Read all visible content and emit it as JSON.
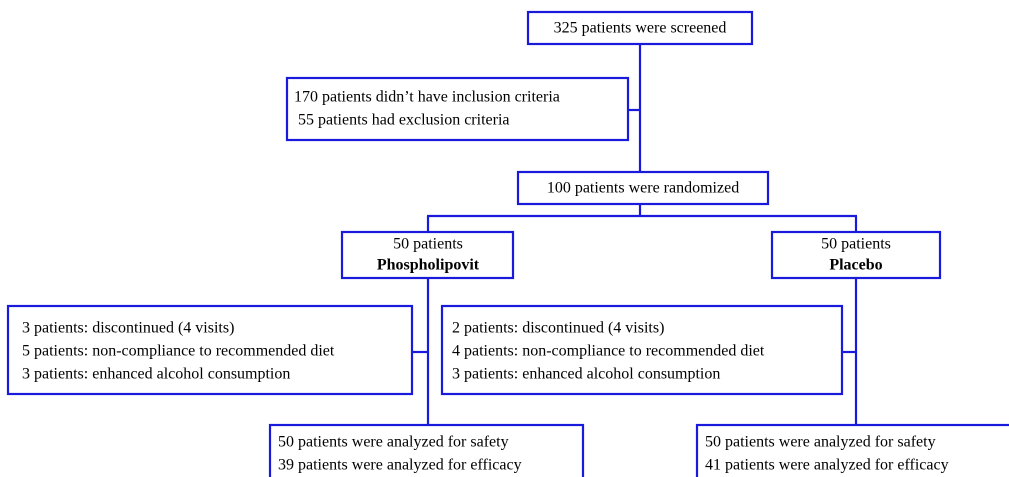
{
  "nodes": [
    {
      "lines": [
        "325 patients were screened"
      ]
    },
    {
      "lines": [
        "170 patients didn’t have inclusion criteria",
        " 55 patients had exclusion criteria"
      ]
    },
    {
      "lines": [
        "100 patients were randomized"
      ]
    },
    {
      "lines": [
        "50 patients",
        "Phospholipovit"
      ]
    },
    {
      "lines": [
        "50 patients",
        "Placebo"
      ]
    },
    {
      "lines": [
        "3 patients: discontinued (4 visits)",
        "5 patients: non-compliance to recommended diet",
        "3 patients: enhanced alcohol consumption"
      ]
    },
    {
      "lines": [
        "2 patients: discontinued (4 visits)",
        "4 patients: non-compliance to recommended diet",
        "3 patients: enhanced alcohol consumption"
      ]
    },
    {
      "lines": [
        "50 patients were analyzed for safety",
        "39 patients were analyzed for efficacy"
      ]
    },
    {
      "lines": [
        "50 patients were analyzed for safety",
        "41 patients were analyzed for efficacy"
      ]
    }
  ]
}
